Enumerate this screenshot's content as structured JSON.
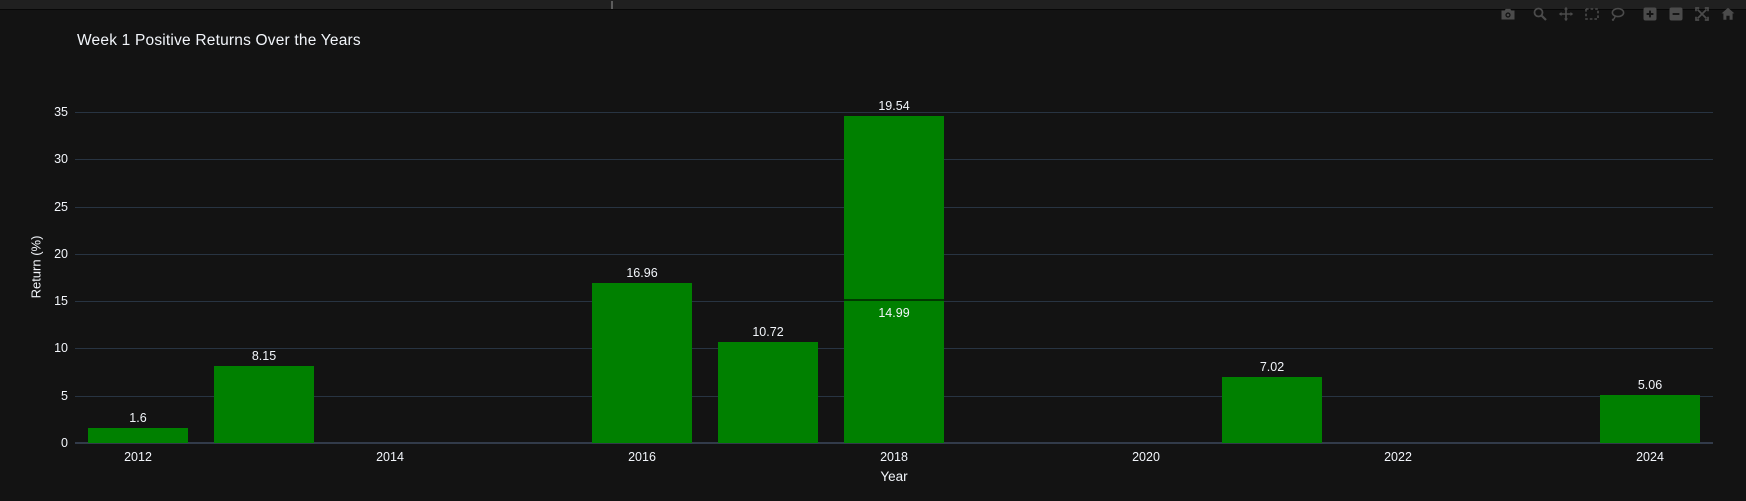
{
  "colors": {
    "background": "#131313",
    "strip": "#202020",
    "grid": "#283442",
    "zeroline": "#323b4a",
    "bar": "#008000",
    "text": "#f2f5fa",
    "icon": "#4b4b4b"
  },
  "toolbar": {
    "icons": [
      {
        "name": "camera"
      },
      {
        "name": "zoom"
      },
      {
        "name": "pan"
      },
      {
        "name": "box-select"
      },
      {
        "name": "lasso-select"
      },
      {
        "name": "zoom-in"
      },
      {
        "name": "zoom-out"
      },
      {
        "name": "autoscale"
      },
      {
        "name": "reset-axes"
      }
    ]
  },
  "chart_data": {
    "type": "bar",
    "stacked": true,
    "title": "Week 1 Positive Returns Over the Years",
    "xlabel": "Year",
    "ylabel": "Return (%)",
    "ylim": [
      0,
      35
    ],
    "yticks": [
      0,
      5,
      10,
      15,
      20,
      25,
      30,
      35
    ],
    "xticks": [
      "2012",
      "2014",
      "2016",
      "2018",
      "2020",
      "2022",
      "2024"
    ],
    "xlim": [
      2011.5,
      2024.5
    ],
    "grid": true,
    "legend": "none",
    "bar_color": "#008000",
    "bars": [
      {
        "year": 2012,
        "segments": [
          {
            "value": 1.6,
            "label": "1.6",
            "label_pos": "outside"
          }
        ]
      },
      {
        "year": 2013,
        "segments": [
          {
            "value": 8.15,
            "label": "8.15",
            "label_pos": "outside"
          }
        ]
      },
      {
        "year": 2016,
        "segments": [
          {
            "value": 16.96,
            "label": "16.96",
            "label_pos": "outside"
          }
        ]
      },
      {
        "year": 2017,
        "segments": [
          {
            "value": 10.72,
            "label": "10.72",
            "label_pos": "outside"
          }
        ]
      },
      {
        "year": 2018,
        "segments": [
          {
            "value": 14.99,
            "label": "14.99",
            "label_pos": "inside"
          },
          {
            "value": 19.54,
            "label": "19.54",
            "label_pos": "outside"
          }
        ]
      },
      {
        "year": 2021,
        "segments": [
          {
            "value": 7.02,
            "label": "7.02",
            "label_pos": "outside"
          }
        ]
      },
      {
        "year": 2024,
        "segments": [
          {
            "value": 5.06,
            "label": "5.06",
            "label_pos": "outside"
          }
        ]
      }
    ]
  }
}
